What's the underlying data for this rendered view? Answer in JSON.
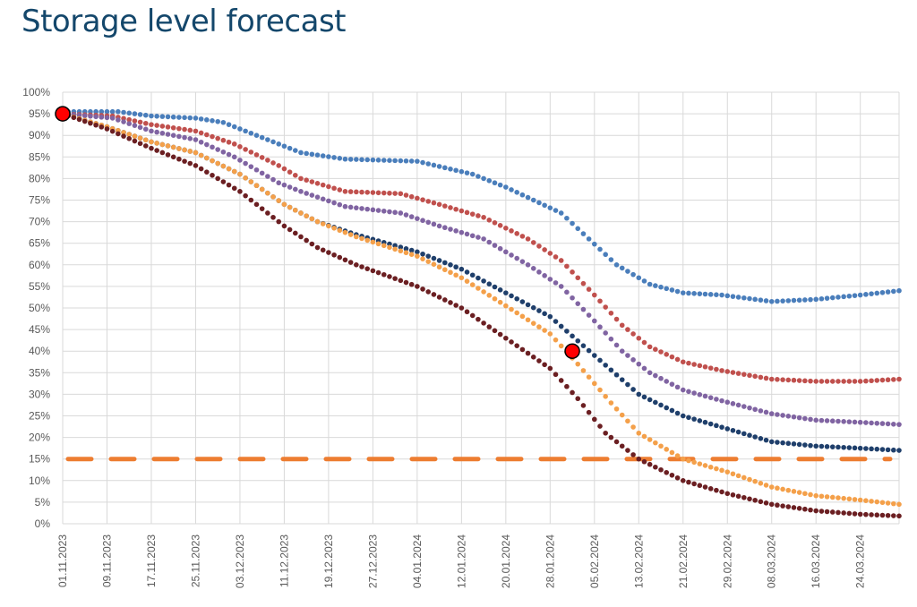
{
  "title": "Storage level forecast",
  "chart_data": {
    "type": "scatter",
    "title": "Storage level forecast",
    "xlabel": "",
    "ylabel": "",
    "x_ticks": [
      "01.11.2023",
      "09.11.2023",
      "17.11.2023",
      "25.11.2023",
      "03.12.2023",
      "11.12.2023",
      "19.12.2023",
      "27.12.2023",
      "04.01.2024",
      "12.01.2024",
      "20.01.2024",
      "28.01.2024",
      "05.02.2024",
      "13.02.2024",
      "21.02.2024",
      "29.02.2024",
      "08.03.2024",
      "16.03.2024",
      "24.03.2024"
    ],
    "x_range": [
      "2023-11-01",
      "2024-03-31"
    ],
    "y_ticks": [
      "0%",
      "5%",
      "10%",
      "15%",
      "20%",
      "25%",
      "30%",
      "35%",
      "40%",
      "45%",
      "50%",
      "55%",
      "60%",
      "65%",
      "70%",
      "75%",
      "80%",
      "85%",
      "90%",
      "95%",
      "100%"
    ],
    "ylim": [
      0,
      100
    ],
    "grid": true,
    "legend": "none",
    "series": [
      {
        "color": "#4a7ebb",
        "points": [
          [
            "2023-11-01",
            95.5
          ],
          [
            "2023-11-11",
            95.5
          ],
          [
            "2023-11-17",
            94.5
          ],
          [
            "2023-11-25",
            94
          ],
          [
            "2023-11-30",
            93
          ],
          [
            "2023-12-08",
            89
          ],
          [
            "2023-12-14",
            86
          ],
          [
            "2023-12-22",
            84.5
          ],
          [
            "2024-01-04",
            84
          ],
          [
            "2024-01-14",
            81
          ],
          [
            "2024-01-20",
            78
          ],
          [
            "2024-01-30",
            72
          ],
          [
            "2024-02-04",
            66
          ],
          [
            "2024-02-09",
            60
          ],
          [
            "2024-02-15",
            55.5
          ],
          [
            "2024-02-21",
            53.5
          ],
          [
            "2024-02-28",
            53
          ],
          [
            "2024-03-08",
            51.5
          ],
          [
            "2024-03-16",
            52
          ],
          [
            "2024-03-24",
            53
          ],
          [
            "2024-03-31",
            54
          ]
        ]
      },
      {
        "color": "#c0504d",
        "points": [
          [
            "2023-11-01",
            95
          ],
          [
            "2023-11-10",
            94.5
          ],
          [
            "2023-11-17",
            92.5
          ],
          [
            "2023-11-25",
            91
          ],
          [
            "2023-12-02",
            88
          ],
          [
            "2023-12-10",
            83
          ],
          [
            "2023-12-14",
            80
          ],
          [
            "2023-12-22",
            77
          ],
          [
            "2024-01-01",
            76.5
          ],
          [
            "2024-01-08",
            74
          ],
          [
            "2024-01-16",
            71
          ],
          [
            "2024-01-24",
            66
          ],
          [
            "2024-01-30",
            61
          ],
          [
            "2024-02-05",
            53
          ],
          [
            "2024-02-10",
            46
          ],
          [
            "2024-02-15",
            41
          ],
          [
            "2024-02-21",
            37.5
          ],
          [
            "2024-02-28",
            35.5
          ],
          [
            "2024-03-08",
            33.5
          ],
          [
            "2024-03-16",
            33
          ],
          [
            "2024-03-24",
            33
          ],
          [
            "2024-03-31",
            33.5
          ]
        ]
      },
      {
        "color": "#8064a2",
        "points": [
          [
            "2023-11-01",
            95
          ],
          [
            "2023-11-10",
            94
          ],
          [
            "2023-11-17",
            91
          ],
          [
            "2023-11-25",
            89
          ],
          [
            "2023-12-02",
            85
          ],
          [
            "2023-12-10",
            79
          ],
          [
            "2023-12-14",
            77
          ],
          [
            "2023-12-22",
            73.5
          ],
          [
            "2024-01-01",
            72
          ],
          [
            "2024-01-08",
            69
          ],
          [
            "2024-01-16",
            66
          ],
          [
            "2024-01-24",
            60
          ],
          [
            "2024-01-30",
            55
          ],
          [
            "2024-02-05",
            47
          ],
          [
            "2024-02-10",
            40
          ],
          [
            "2024-02-15",
            35
          ],
          [
            "2024-02-21",
            31
          ],
          [
            "2024-02-28",
            28.5
          ],
          [
            "2024-03-08",
            25.5
          ],
          [
            "2024-03-16",
            24
          ],
          [
            "2024-03-24",
            23.5
          ],
          [
            "2024-03-31",
            23
          ]
        ]
      },
      {
        "color": "#1f3f6b",
        "points": [
          [
            "2023-11-01",
            95
          ],
          [
            "2023-11-09",
            92
          ],
          [
            "2023-11-17",
            88.5
          ],
          [
            "2023-11-25",
            86
          ],
          [
            "2023-12-03",
            81
          ],
          [
            "2023-12-11",
            74
          ],
          [
            "2023-12-17",
            70
          ],
          [
            "2023-12-24",
            67
          ],
          [
            "2024-01-04",
            63
          ],
          [
            "2024-01-12",
            59
          ],
          [
            "2024-01-20",
            53.5
          ],
          [
            "2024-01-28",
            48
          ],
          [
            "2024-02-05",
            39
          ],
          [
            "2024-02-13",
            30
          ],
          [
            "2024-02-21",
            25
          ],
          [
            "2024-02-29",
            22
          ],
          [
            "2024-03-08",
            19
          ],
          [
            "2024-03-16",
            18
          ],
          [
            "2024-03-24",
            17.5
          ],
          [
            "2024-03-31",
            17
          ]
        ]
      },
      {
        "color": "#f4a04a",
        "points": [
          [
            "2023-11-01",
            95
          ],
          [
            "2023-11-09",
            92
          ],
          [
            "2023-11-17",
            88.5
          ],
          [
            "2023-11-25",
            86
          ],
          [
            "2023-12-03",
            81
          ],
          [
            "2023-12-11",
            74
          ],
          [
            "2023-12-17",
            70
          ],
          [
            "2023-12-24",
            66.5
          ],
          [
            "2024-01-04",
            62
          ],
          [
            "2024-01-12",
            57
          ],
          [
            "2024-01-20",
            50.5
          ],
          [
            "2024-01-28",
            44
          ],
          [
            "2024-02-02",
            37
          ],
          [
            "2024-02-08",
            28
          ],
          [
            "2024-02-13",
            21
          ],
          [
            "2024-02-21",
            15
          ],
          [
            "2024-02-29",
            12
          ],
          [
            "2024-03-08",
            8.5
          ],
          [
            "2024-03-16",
            6.5
          ],
          [
            "2024-03-24",
            5.5
          ],
          [
            "2024-03-31",
            4.5
          ]
        ]
      },
      {
        "color": "#6b1f22",
        "points": [
          [
            "2023-11-01",
            95
          ],
          [
            "2023-11-09",
            91.5
          ],
          [
            "2023-11-17",
            87
          ],
          [
            "2023-11-25",
            83
          ],
          [
            "2023-12-03",
            77
          ],
          [
            "2023-12-11",
            69
          ],
          [
            "2023-12-17",
            64
          ],
          [
            "2023-12-24",
            60
          ],
          [
            "2024-01-04",
            55
          ],
          [
            "2024-01-12",
            50
          ],
          [
            "2024-01-20",
            43
          ],
          [
            "2024-01-28",
            36
          ],
          [
            "2024-02-02",
            29
          ],
          [
            "2024-02-07",
            21
          ],
          [
            "2024-02-13",
            15
          ],
          [
            "2024-02-21",
            10
          ],
          [
            "2024-02-29",
            7
          ],
          [
            "2024-03-08",
            4.5
          ],
          [
            "2024-03-16",
            3
          ],
          [
            "2024-03-24",
            2.2
          ],
          [
            "2024-03-31",
            1.8
          ]
        ]
      }
    ],
    "reference_line": {
      "y": 15,
      "color": "#ed7d31",
      "style": "dashed"
    },
    "markers": [
      {
        "x": "2023-11-01",
        "y": 95,
        "color": "#ff0000"
      },
      {
        "x": "2024-02-01",
        "y": 40,
        "color": "#ff0000"
      }
    ]
  }
}
